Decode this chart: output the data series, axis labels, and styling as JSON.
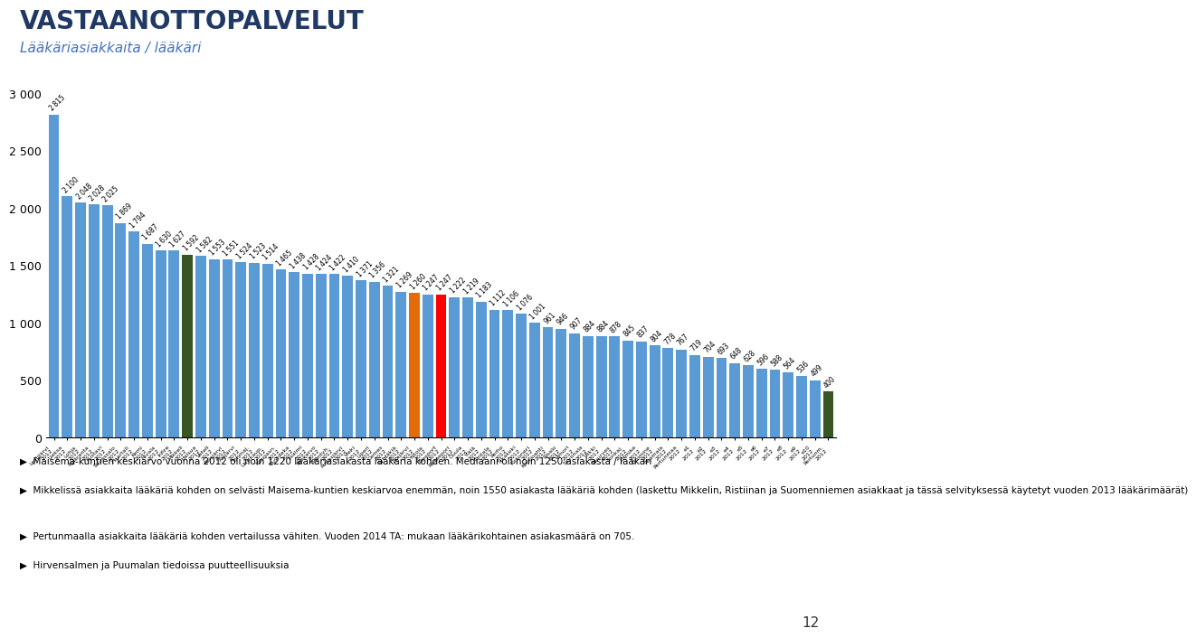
{
  "title": "VASTAANOTTOPALVELUT",
  "subtitle": "Lääkäriasiakkaita / lääkäri",
  "values": [
    2815,
    2100,
    2048,
    2028,
    2025,
    1869,
    1794,
    1687,
    1630,
    1627,
    1592,
    1582,
    1553,
    1551,
    1524,
    1523,
    1514,
    1465,
    1438,
    1428,
    1424,
    1422,
    1410,
    1371,
    1356,
    1321,
    1269,
    1260,
    1247,
    1247,
    1222,
    1219,
    1183,
    1112,
    1106,
    1076,
    1001,
    961,
    946,
    907,
    884,
    884,
    878,
    845,
    837,
    804,
    778,
    767,
    719,
    704,
    693,
    648,
    628,
    596,
    588,
    564,
    536,
    499,
    400
  ],
  "xlabels": [
    "Lestijärvi\n2012",
    "Lieksa\n2012",
    "Lohja\n2012",
    "Kyläranta\n2012",
    "Kustavi\n2012",
    "Taivassalo\n2012",
    "Haartali\n2012",
    "Kemi\n2012",
    "Nivala\n2012",
    "Infire\n2012",
    "Mikkeli\n2012",
    "Halsua\n2012",
    "Veteli\n2012",
    "Reisjärvi\n2012",
    "Alajärvi\n2012",
    "Tohmaj.\n2012",
    "Uusikaup.\n2012",
    "Kangasn.\n2012",
    "Ouvideka\n2012",
    "Iisalmi\n2012",
    "Keskarvo\n2012",
    "Mäntyh.\n2012",
    "Pudasjärvi\n2012",
    "Vieki\n2012",
    "Liperi\n2012",
    "Cemes\n2012",
    "Pyhtäkiä\n2012",
    "Atajärvi\n2012",
    "Kitola\n2012",
    "Riesport\n2012",
    "Raasepori\n2012",
    "Ouula\n2012",
    "Ylälä\n2012",
    "Rintala\n2012",
    "Perho\n2012",
    "Sikakoki\n2012",
    "Kirkoneri\n2012",
    "Kontioahti\n2012",
    "Risalo\n2012",
    "Vimori\n2012",
    "Savonala\n2012",
    "Viikki\n2012",
    "Nuurves\n2012",
    "Sonkaj.\n2012",
    "Litmike\n2012",
    "Linimine\n2012",
    "Puumala\n2012",
    "Pertunmaa\n2012",
    "e1\n2012",
    "e2\n2012",
    "e3\n2012",
    "e4\n2012",
    "e5\n2012",
    "e6\n2012",
    "e7\n2012",
    "e8\n2012",
    "e9\n2012",
    "e10\n2012",
    "Pertunm.\n2012"
  ],
  "green_indices": [
    10,
    58
  ],
  "orange_indices": [
    27
  ],
  "red_indices": [
    29
  ],
  "bar_color_default": "#5B9BD5",
  "bar_color_green": "#375623",
  "bar_color_orange": "#E36C09",
  "bar_color_red": "#FF0000",
  "title_color": "#1F3864",
  "subtitle_color": "#4472C4",
  "line_color": "#5B9BD5",
  "ylim": [
    0,
    3200
  ],
  "yticks": [
    0,
    500,
    1000,
    1500,
    2000,
    2500,
    3000
  ],
  "ytick_labels": [
    "0",
    "500",
    "1 000",
    "1 500",
    "2 000",
    "2 500",
    "3 000"
  ],
  "footer_lines": [
    "Maisema-kuntien keskiarvo vuonna 2012 oli noin 1220 lääkäriasiakasta lääkäriä kohden. Mediaani oli noin 1250 asiakasta / lääkäri",
    "Mikkelissä asiakkaita lääkäriä kohden on selvästi Maisema-kuntien keskiarvoa enemmän, noin 1550 asiakasta lääkäriä kohden (laskettu Mikkelin, Ristiinan ja Suomenniemen asiakkaat ja tässä selvityksessä käytetyt vuoden 2013 lääkärimäärät)",
    "Pertunmaalla asiakkaita lääkäriä kohden vertailussa vähiten. Vuoden 2014 TA: mukaan lääkärikohtainen asiakasmäärä on 705.",
    "Hirvensalmen ja Puumalan tiedoissa puutteellisuuksia"
  ],
  "page_number": "12"
}
